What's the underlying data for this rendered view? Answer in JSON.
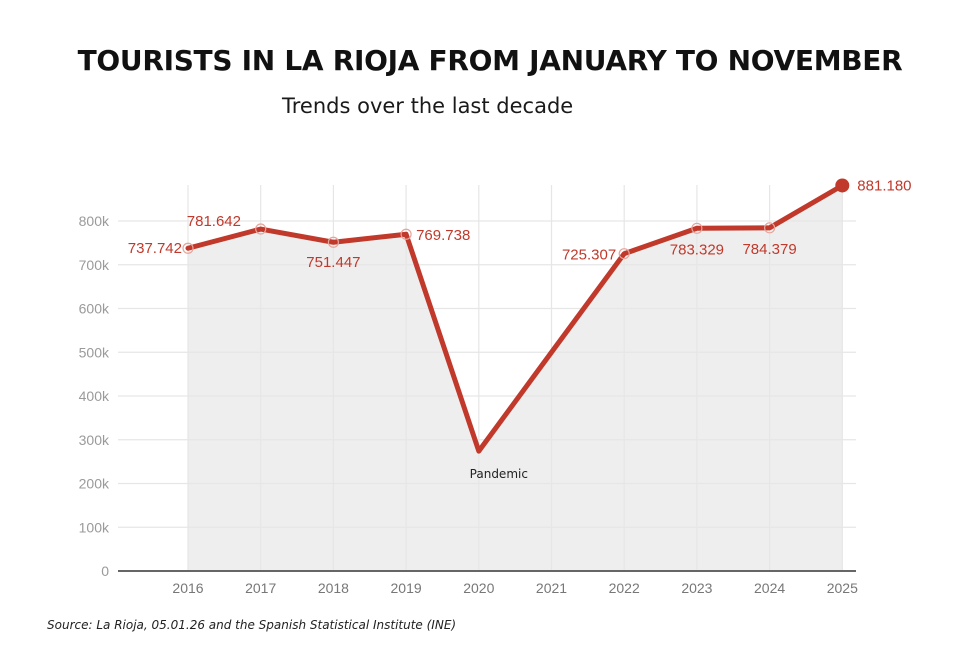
{
  "header": {
    "title": "TOURISTS IN LA RIOJA FROM JANUARY TO NOVEMBER",
    "subtitle": "Trends over the last decade"
  },
  "footer": {
    "source": "Source: La Rioja, 05.01.26 and the Spanish Statistical Institute (INE)"
  },
  "colors": {
    "line": "#c0392b",
    "area_fill": "#eeeeee",
    "grid": "#e6e6e6",
    "axis": "#666666"
  },
  "chart_data": {
    "type": "area",
    "title": "TOURISTS IN LA RIOJA FROM JANUARY TO NOVEMBER",
    "subtitle": "Trends over the last decade",
    "xlabel": "",
    "ylabel": "",
    "categories": [
      "2016",
      "2017",
      "2018",
      "2019",
      "2020",
      "2021",
      "2022",
      "2023",
      "2024",
      "2025"
    ],
    "series": [
      {
        "name": "Tourists",
        "values": [
          737742,
          781642,
          751447,
          769738,
          274000,
          500000,
          725307,
          783329,
          784379,
          881180
        ]
      }
    ],
    "data_labels": [
      "737.742",
      "781.642",
      "751.447",
      "769.738",
      "",
      "",
      "725.307",
      "783.329",
      "784.379",
      "881.180"
    ],
    "y_ticks": [
      "0",
      "100k",
      "200k",
      "300k",
      "400k",
      "500k",
      "600k",
      "700k",
      "800k"
    ],
    "ylim": [
      0,
      900000
    ],
    "grid": true,
    "legend": "none",
    "annotations": [
      {
        "x": "2020",
        "text": "Pandemic"
      }
    ],
    "source": "Source: La Rioja, 05.01.26 and the Spanish Statistical Institute (INE)"
  }
}
